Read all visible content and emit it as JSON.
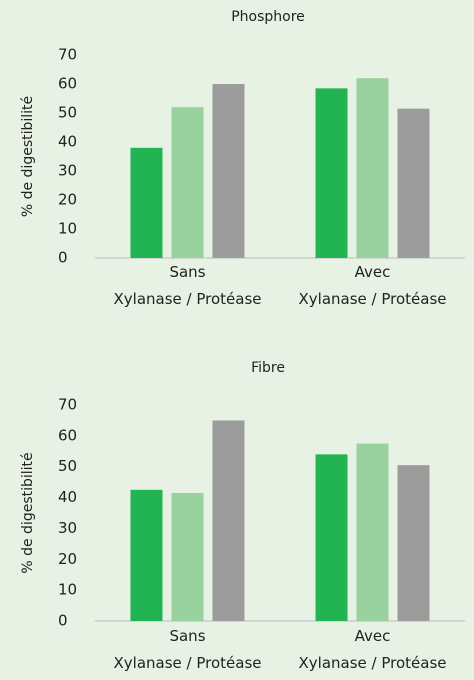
{
  "chart_data": [
    {
      "type": "bar",
      "title": "Phosphore",
      "y_label": "% de digestibilité",
      "categories": [
        "Sans\nXylanase / Protéase",
        "Avec\nXylanase / Protéase"
      ],
      "series": [
        {
          "color": "#22b352",
          "values": [
            38,
            58.5
          ]
        },
        {
          "color": "#99d19f",
          "values": [
            52,
            62
          ]
        },
        {
          "color": "#9c9c9c",
          "values": [
            60,
            51.5
          ]
        }
      ],
      "ylim": [
        0,
        70
      ],
      "yticks": [
        0,
        10,
        20,
        30,
        40,
        50,
        60,
        70
      ],
      "grid": false
    },
    {
      "type": "bar",
      "title": "Fibre",
      "y_label": "% de digestibilité",
      "categories": [
        "Sans\nXylanase / Protéase",
        "Avec\nXylanase / Protéase"
      ],
      "series": [
        {
          "color": "#22b352",
          "values": [
            42.5,
            54
          ]
        },
        {
          "color": "#99d19f",
          "values": [
            41.5,
            57.5
          ]
        },
        {
          "color": "#9c9c9c",
          "values": [
            65,
            50.5
          ]
        }
      ],
      "ylim": [
        0,
        70
      ],
      "yticks": [
        0,
        10,
        20,
        30,
        40,
        50,
        60,
        70
      ],
      "grid": false
    }
  ]
}
